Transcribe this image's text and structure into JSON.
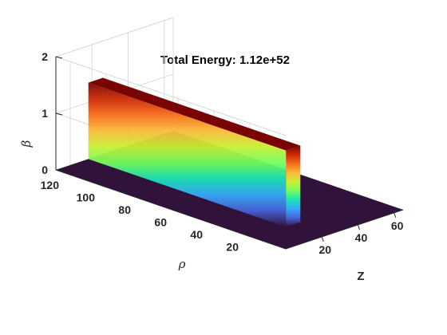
{
  "chart_data": {
    "type": "surface",
    "title": "Total Energy: 1.12e+52",
    "xlabel": "Z",
    "ylabel": "ρ",
    "zlabel": "β",
    "x_ticks": [
      "20",
      "40",
      "60"
    ],
    "y_ticks": [
      "20",
      "40",
      "60",
      "80",
      "100",
      "120"
    ],
    "z_ticks": [
      "0",
      "1",
      "2"
    ],
    "xlim": [
      0,
      65
    ],
    "ylim": [
      0,
      128
    ],
    "zlim": [
      0,
      2
    ],
    "grid": true,
    "colormap": [
      "#30123b",
      "#4662d7",
      "#36aaf9",
      "#1ae4b6",
      "#72fe5e",
      "#c8ef34",
      "#faba39",
      "#f66b19",
      "#ca2a04",
      "#7a0403"
    ],
    "floor_color": "#30123b",
    "block": {
      "x_range": [
        18,
        26
      ],
      "y_range": [
        18,
        128
      ],
      "z_value": 1.35
    }
  }
}
